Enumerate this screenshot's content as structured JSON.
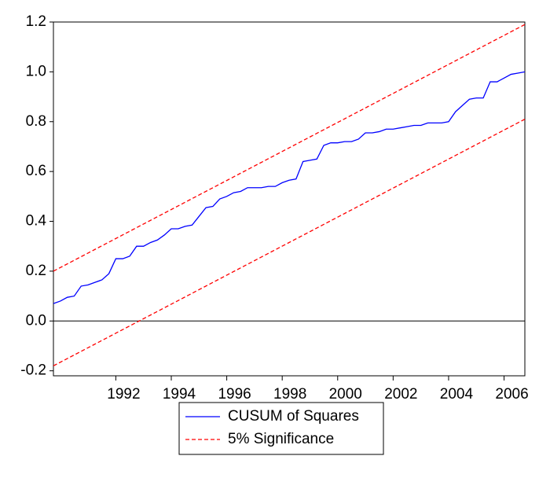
{
  "chart_data": {
    "type": "line",
    "x": [
      1989.75,
      1990,
      1990.25,
      1990.5,
      1990.75,
      1991,
      1991.25,
      1991.5,
      1991.75,
      1992,
      1992.25,
      1992.5,
      1992.75,
      1993,
      1993.25,
      1993.5,
      1993.75,
      1994,
      1994.25,
      1994.5,
      1994.75,
      1995,
      1995.25,
      1995.5,
      1995.75,
      1996,
      1996.25,
      1996.5,
      1996.75,
      1997,
      1997.25,
      1997.5,
      1997.75,
      1998,
      1998.25,
      1998.5,
      1998.75,
      1999,
      1999.25,
      1999.5,
      1999.75,
      2000,
      2000.25,
      2000.5,
      2000.75,
      2001,
      2001.25,
      2001.5,
      2001.75,
      2002,
      2002.25,
      2002.5,
      2002.75,
      2003,
      2003.25,
      2003.5,
      2003.75,
      2004,
      2004.25,
      2004.5,
      2004.75,
      2005,
      2005.25,
      2005.5,
      2005.75,
      2006,
      2006.25,
      2006.5,
      2006.75
    ],
    "series": [
      {
        "name": "CUSUM of Squares",
        "color": "#0000ff",
        "values": [
          0.07,
          0.08,
          0.095,
          0.1,
          0.14,
          0.145,
          0.155,
          0.165,
          0.19,
          0.25,
          0.25,
          0.26,
          0.3,
          0.3,
          0.315,
          0.325,
          0.345,
          0.37,
          0.37,
          0.38,
          0.385,
          0.42,
          0.455,
          0.46,
          0.49,
          0.5,
          0.515,
          0.52,
          0.535,
          0.535,
          0.535,
          0.54,
          0.54,
          0.555,
          0.565,
          0.57,
          0.64,
          0.645,
          0.65,
          0.705,
          0.715,
          0.715,
          0.72,
          0.72,
          0.73,
          0.755,
          0.755,
          0.76,
          0.77,
          0.77,
          0.775,
          0.78,
          0.785,
          0.785,
          0.795,
          0.795,
          0.795,
          0.8,
          0.84,
          0.865,
          0.89,
          0.895,
          0.895,
          0.96,
          0.96,
          0.975,
          0.99,
          0.995,
          1.0
        ]
      }
    ],
    "bands": {
      "name": "5% Significance",
      "color": "#ff0000",
      "x": [
        1989.75,
        2006.75
      ],
      "upper": [
        0.2,
        1.19
      ],
      "lower": [
        -0.18,
        0.81
      ]
    },
    "xlim": [
      1989.75,
      2006.75
    ],
    "xticks": [
      1992,
      1994,
      1996,
      1998,
      2000,
      2002,
      2004,
      2006
    ],
    "ylim": [
      -0.22,
      1.2
    ],
    "yticks": [
      -0.2,
      {
        "value": 0,
        "label": "0.0"
      },
      0.2,
      0.4,
      0.6,
      0.8,
      {
        "value": 1,
        "label": "1.0"
      },
      1.2
    ],
    "zero_line": true
  }
}
